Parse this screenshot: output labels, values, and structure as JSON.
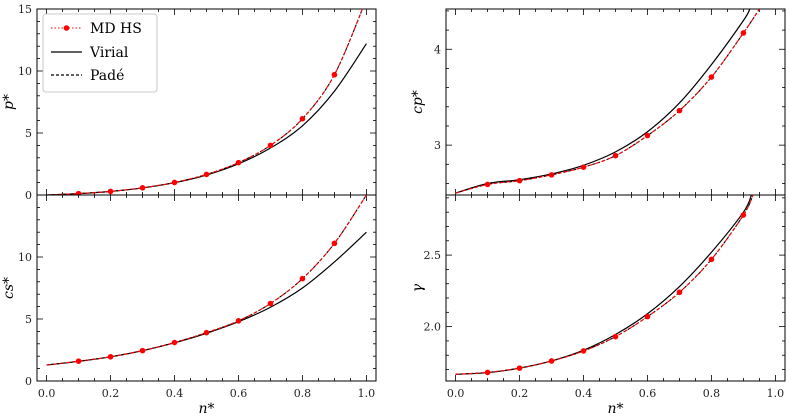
{
  "chart_data": [
    {
      "type": "line",
      "panel": "top-left",
      "title": "",
      "xlabel": "",
      "ylabel": "p*",
      "xlim": [
        -0.03,
        1.03
      ],
      "ylim": [
        0,
        15
      ],
      "xticks": [
        0.0,
        0.2,
        0.4,
        0.6,
        0.8,
        1.0
      ],
      "xtick_labels": [
        "",
        "",
        "",
        "",
        "",
        ""
      ],
      "yticks": [
        0,
        5,
        10,
        15
      ],
      "ytick_labels": [
        "0",
        "5",
        "10",
        "15"
      ],
      "legend_placement": "top-left",
      "series": [
        {
          "name": "MD HS",
          "style": "dotted-markers",
          "color": "#ff0000",
          "x": [
            0.1,
            0.2,
            0.3,
            0.4,
            0.5,
            0.6,
            0.7,
            0.8,
            0.9
          ],
          "y": [
            0.11,
            0.29,
            0.58,
            1.01,
            1.66,
            2.61,
            4.0,
            6.15,
            9.7
          ]
        },
        {
          "name": "Virial",
          "style": "solid",
          "color": "#000000",
          "x": [
            0,
            0.1,
            0.2,
            0.3,
            0.4,
            0.5,
            0.6,
            0.7,
            0.8,
            0.9,
            1.0
          ],
          "y": [
            0,
            0.11,
            0.29,
            0.57,
            0.99,
            1.61,
            2.51,
            3.79,
            5.58,
            8.37,
            12.2
          ]
        },
        {
          "name": "Padé",
          "style": "dashed",
          "color": "#000000",
          "x": [
            0,
            0.1,
            0.2,
            0.3,
            0.4,
            0.5,
            0.6,
            0.7,
            0.8,
            0.9,
            1.0
          ],
          "y": [
            0,
            0.11,
            0.29,
            0.58,
            1.01,
            1.66,
            2.61,
            4.0,
            6.15,
            9.7,
            15.8
          ]
        },
        {
          "name": "",
          "style": "dashed",
          "color": "#ff0000",
          "x": [
            0,
            0.1,
            0.2,
            0.3,
            0.4,
            0.5,
            0.6,
            0.7,
            0.8,
            0.9,
            1.0
          ],
          "y": [
            0,
            0.11,
            0.29,
            0.58,
            1.01,
            1.66,
            2.61,
            4.0,
            6.15,
            9.7,
            15.8
          ]
        }
      ]
    },
    {
      "type": "line",
      "panel": "top-right",
      "title": "",
      "xlabel": "",
      "ylabel": "cp*",
      "xlim": [
        -0.03,
        1.03
      ],
      "ylim": [
        2.48,
        4.42
      ],
      "xticks": [
        0.0,
        0.2,
        0.4,
        0.6,
        0.8,
        1.0
      ],
      "xtick_labels": [
        "",
        "",
        "",
        "",
        "",
        ""
      ],
      "yticks": [
        3,
        4
      ],
      "ytick_labels": [
        "3",
        "4"
      ],
      "series": [
        {
          "name": "MD HS",
          "style": "dotted-markers",
          "color": "#ff0000",
          "x": [
            0.1,
            0.2,
            0.3,
            0.4,
            0.5,
            0.6,
            0.7,
            0.8,
            0.9
          ],
          "y": [
            2.59,
            2.63,
            2.69,
            2.77,
            2.89,
            3.1,
            3.36,
            3.71,
            4.17
          ]
        },
        {
          "name": "Virial",
          "style": "solid",
          "color": "#000000",
          "x": [
            0,
            0.1,
            0.2,
            0.3,
            0.4,
            0.5,
            0.6,
            0.7,
            0.8,
            0.9,
            0.92
          ],
          "y": [
            2.5,
            2.6,
            2.64,
            2.7,
            2.79,
            2.93,
            3.14,
            3.44,
            3.84,
            4.3,
            4.42
          ]
        },
        {
          "name": "Padé",
          "style": "dashed",
          "color": "#000000",
          "x": [
            0,
            0.1,
            0.2,
            0.3,
            0.4,
            0.5,
            0.6,
            0.7,
            0.8,
            0.9,
            0.95
          ],
          "y": [
            2.5,
            2.59,
            2.63,
            2.69,
            2.77,
            2.89,
            3.1,
            3.36,
            3.71,
            4.17,
            4.42
          ]
        },
        {
          "name": "",
          "style": "dashed",
          "color": "#ff0000",
          "x": [
            0,
            0.1,
            0.2,
            0.3,
            0.4,
            0.5,
            0.6,
            0.7,
            0.8,
            0.9,
            0.95
          ],
          "y": [
            2.5,
            2.59,
            2.63,
            2.69,
            2.77,
            2.89,
            3.1,
            3.36,
            3.71,
            4.17,
            4.42
          ]
        }
      ]
    },
    {
      "type": "line",
      "panel": "bottom-left",
      "title": "",
      "xlabel": "n*",
      "ylabel": "cs*",
      "xlim": [
        -0.03,
        1.03
      ],
      "ylim": [
        0,
        15
      ],
      "xticks": [
        0.0,
        0.2,
        0.4,
        0.6,
        0.8,
        1.0
      ],
      "xtick_labels": [
        "0.0",
        "0.2",
        "0.4",
        "0.6",
        "0.8",
        "1.0"
      ],
      "yticks": [
        0,
        5,
        10
      ],
      "ytick_labels": [
        "0",
        "5",
        "10"
      ],
      "series": [
        {
          "name": "MD HS",
          "style": "dotted-markers",
          "color": "#ff0000",
          "x": [
            0.1,
            0.2,
            0.3,
            0.4,
            0.5,
            0.6,
            0.7,
            0.8,
            0.9
          ],
          "y": [
            1.6,
            1.95,
            2.45,
            3.1,
            3.9,
            4.85,
            6.25,
            8.25,
            11.1
          ]
        },
        {
          "name": "Virial",
          "style": "solid",
          "color": "#000000",
          "x": [
            0,
            0.1,
            0.2,
            0.3,
            0.4,
            0.5,
            0.6,
            0.7,
            0.8,
            0.9,
            1.0
          ],
          "y": [
            1.29,
            1.58,
            1.95,
            2.45,
            3.08,
            3.85,
            4.78,
            5.95,
            7.5,
            9.6,
            12.0
          ]
        },
        {
          "name": "Padé",
          "style": "dashed",
          "color": "#000000",
          "x": [
            0,
            0.1,
            0.2,
            0.3,
            0.4,
            0.5,
            0.6,
            0.7,
            0.8,
            0.9,
            1.0
          ],
          "y": [
            1.29,
            1.6,
            1.95,
            2.45,
            3.1,
            3.9,
            4.85,
            6.25,
            8.25,
            11.1,
            15.0
          ]
        },
        {
          "name": "",
          "style": "dashed",
          "color": "#ff0000",
          "x": [
            0,
            0.1,
            0.2,
            0.3,
            0.4,
            0.5,
            0.6,
            0.7,
            0.8,
            0.9,
            1.0
          ],
          "y": [
            1.29,
            1.6,
            1.95,
            2.45,
            3.1,
            3.9,
            4.85,
            6.25,
            8.25,
            11.1,
            15.0
          ]
        }
      ]
    },
    {
      "type": "line",
      "panel": "bottom-right",
      "title": "",
      "xlabel": "n*",
      "ylabel": "γ",
      "xlim": [
        -0.03,
        1.03
      ],
      "ylim": [
        1.62,
        2.92
      ],
      "xticks": [
        0.0,
        0.2,
        0.4,
        0.6,
        0.8,
        1.0
      ],
      "xtick_labels": [
        "0.0",
        "0.2",
        "0.4",
        "0.6",
        "0.8",
        "1.0"
      ],
      "yticks": [
        2.0,
        2.5
      ],
      "ytick_labels": [
        "2.0",
        "2.5"
      ],
      "series": [
        {
          "name": "MD HS",
          "style": "dotted-markers",
          "color": "#ff0000",
          "x": [
            0.1,
            0.2,
            0.3,
            0.4,
            0.5,
            0.6,
            0.7,
            0.8,
            0.9
          ],
          "y": [
            1.68,
            1.71,
            1.76,
            1.83,
            1.93,
            2.07,
            2.24,
            2.47,
            2.78
          ]
        },
        {
          "name": "Virial",
          "style": "solid",
          "color": "#000000",
          "x": [
            0,
            0.1,
            0.2,
            0.3,
            0.4,
            0.5,
            0.6,
            0.7,
            0.8,
            0.9,
            0.925
          ],
          "y": [
            1.667,
            1.678,
            1.71,
            1.76,
            1.835,
            1.945,
            2.09,
            2.28,
            2.52,
            2.8,
            2.92
          ]
        },
        {
          "name": "Padé",
          "style": "dashed",
          "color": "#000000",
          "x": [
            0,
            0.1,
            0.2,
            0.3,
            0.4,
            0.5,
            0.6,
            0.7,
            0.8,
            0.9,
            0.93
          ],
          "y": [
            1.667,
            1.68,
            1.71,
            1.76,
            1.83,
            1.93,
            2.07,
            2.24,
            2.47,
            2.78,
            2.92
          ]
        },
        {
          "name": "",
          "style": "dashed",
          "color": "#ff0000",
          "x": [
            0,
            0.1,
            0.2,
            0.3,
            0.4,
            0.5,
            0.6,
            0.7,
            0.8,
            0.9,
            0.93
          ],
          "y": [
            1.667,
            1.68,
            1.71,
            1.76,
            1.83,
            1.93,
            2.07,
            2.24,
            2.47,
            2.78,
            2.92
          ]
        }
      ]
    }
  ]
}
